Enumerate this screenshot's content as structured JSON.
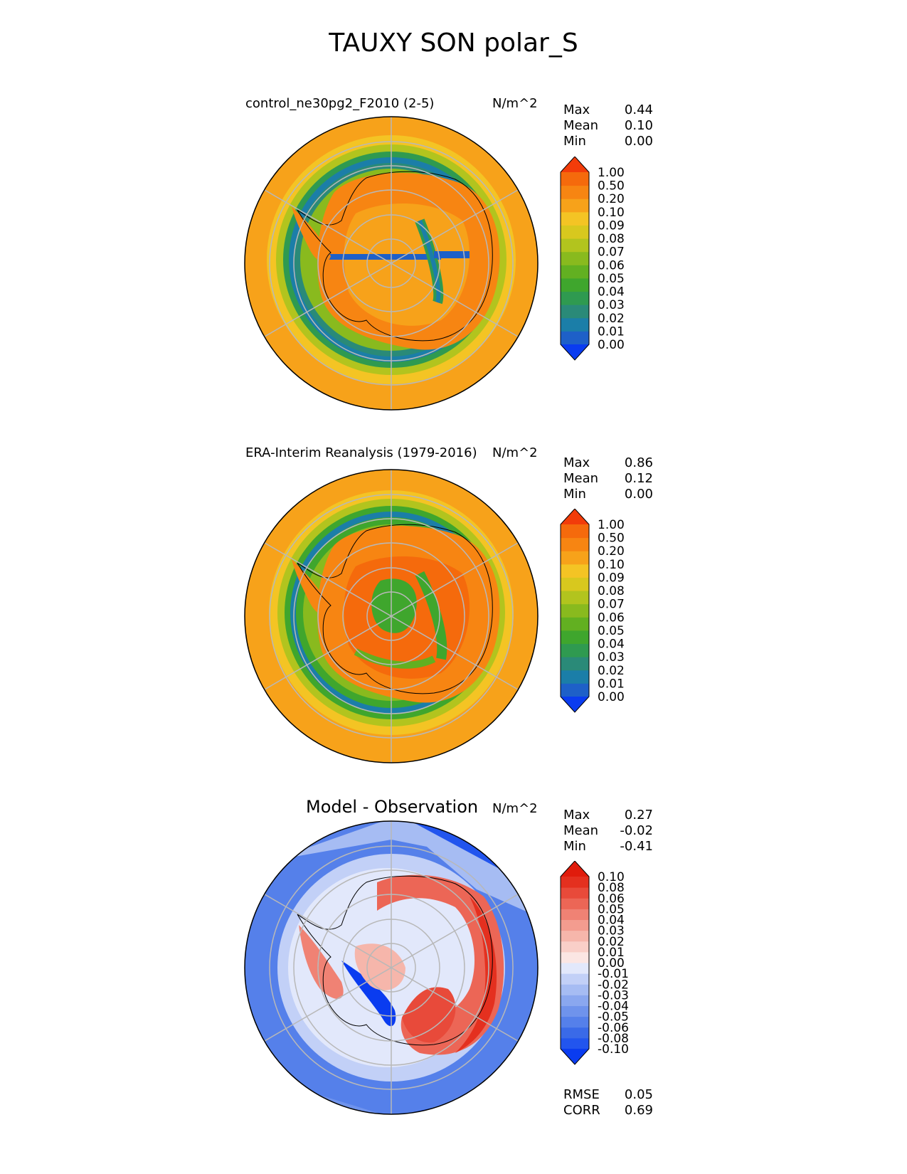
{
  "figure": {
    "title": "TAUXY SON polar_S"
  },
  "panels": [
    {
      "id": "test",
      "title": "control_ne30pg2_F2010 (2-5)",
      "units": "N/m^2",
      "stats": [
        {
          "label": "Max",
          "value": "0.44"
        },
        {
          "label": "Mean",
          "value": "0.10"
        },
        {
          "label": "Min",
          "value": "0.00"
        }
      ],
      "colorbar": {
        "colormap": "WhiteBlueGreenYellowRed",
        "levels": [
          "0.00",
          "0.01",
          "0.02",
          "0.03",
          "0.04",
          "0.05",
          "0.06",
          "0.07",
          "0.08",
          "0.09",
          "0.10",
          "0.20",
          "0.50",
          "1.00"
        ],
        "colors": [
          "#0a3cf0",
          "#1e60c8",
          "#1b7ea8",
          "#2a8a78",
          "#2f9a50",
          "#3fa62d",
          "#62b021",
          "#89ba1e",
          "#b2c41e",
          "#d8c81e",
          "#f4c424",
          "#f7a21a",
          "#f78512",
          "#f56a0c",
          "#f23c0a"
        ]
      },
      "bottom_stats": []
    },
    {
      "id": "reference",
      "title": "ERA-Interim Reanalysis (1979-2016)",
      "units": "N/m^2",
      "stats": [
        {
          "label": "Max",
          "value": "0.86"
        },
        {
          "label": "Mean",
          "value": "0.12"
        },
        {
          "label": "Min",
          "value": "0.00"
        }
      ],
      "colorbar": {
        "colormap": "WhiteBlueGreenYellowRed",
        "levels": [
          "0.00",
          "0.01",
          "0.02",
          "0.03",
          "0.04",
          "0.05",
          "0.06",
          "0.07",
          "0.08",
          "0.09",
          "0.10",
          "0.20",
          "0.50",
          "1.00"
        ],
        "colors": [
          "#0a3cf0",
          "#1e60c8",
          "#1b7ea8",
          "#2a8a78",
          "#2f9a50",
          "#3fa62d",
          "#62b021",
          "#89ba1e",
          "#b2c41e",
          "#d8c81e",
          "#f4c424",
          "#f7a21a",
          "#f78512",
          "#f56a0c",
          "#f23c0a"
        ]
      },
      "bottom_stats": []
    },
    {
      "id": "diff",
      "title": "Model - Observation",
      "units": "N/m^2",
      "stats": [
        {
          "label": "Max",
          "value": "0.27"
        },
        {
          "label": "Mean",
          "value": "-0.02"
        },
        {
          "label": "Min",
          "value": "-0.41"
        }
      ],
      "colorbar": {
        "colormap": "diverging_bwr",
        "levels": [
          "-0.10",
          "-0.08",
          "-0.06",
          "-0.05",
          "-0.04",
          "-0.03",
          "-0.02",
          "-0.01",
          "0.00",
          "0.01",
          "0.02",
          "0.03",
          "0.04",
          "0.05",
          "0.06",
          "0.08",
          "0.10"
        ],
        "colors": [
          "#0a3cf0",
          "#2255ee",
          "#3a6ae8",
          "#5580ea",
          "#6f93ec",
          "#8aa7ef",
          "#a6bcf3",
          "#c2d0f7",
          "#e2e8fb",
          "#fbe6e3",
          "#f9cfc8",
          "#f6b6ab",
          "#f39c8f",
          "#f08274",
          "#ec6656",
          "#e84a3a",
          "#e4301f",
          "#e01c0c"
        ]
      },
      "bottom_stats": [
        {
          "label": "RMSE",
          "value": "0.05"
        },
        {
          "label": "CORR",
          "value": "0.69"
        }
      ]
    }
  ]
}
